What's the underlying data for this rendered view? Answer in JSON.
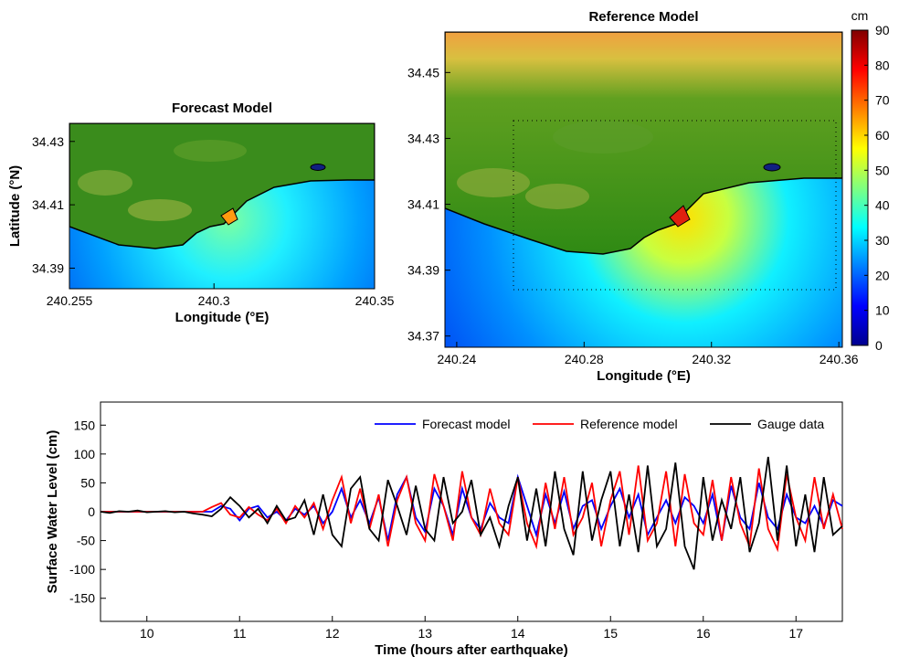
{
  "chart_data": [
    {
      "type": "map",
      "title": "Forecast Model",
      "xlabel": "Longitude (°E)",
      "ylabel": "Latitude (°N)",
      "xlim": [
        240.255,
        240.35
      ],
      "ylim": [
        34.3835,
        34.4357
      ],
      "xticks": [
        240.255,
        240.3,
        240.35
      ],
      "yticks": [
        34.39,
        34.41,
        34.43
      ]
    },
    {
      "type": "map",
      "title": "Reference Model",
      "xlabel": "Longitude (°E)",
      "xlim": [
        240.2363,
        240.3611
      ],
      "ylim": [
        34.3666,
        34.4623
      ],
      "xticks": [
        240.24,
        240.28,
        240.32,
        240.36
      ],
      "yticks": [
        34.37,
        34.39,
        34.41,
        34.43,
        34.45
      ],
      "colorbar": {
        "label": "cm",
        "lim": [
          0,
          90
        ],
        "ticks": [
          0,
          10,
          20,
          30,
          40,
          50,
          60,
          70,
          80,
          90
        ]
      }
    },
    {
      "type": "line",
      "xlabel": "Time (hours after earthquake)",
      "ylabel": "Surface Water Level (cm)",
      "xlim": [
        9.5,
        17.5
      ],
      "ylim": [
        -190,
        190
      ],
      "xticks": [
        10,
        11,
        12,
        13,
        14,
        15,
        16,
        17
      ],
      "yticks": [
        -150,
        -100,
        -50,
        0,
        50,
        100,
        150
      ],
      "legend": "upper right",
      "x": [
        9.5,
        9.6,
        9.7,
        9.8,
        9.9,
        10.0,
        10.1,
        10.2,
        10.3,
        10.4,
        10.5,
        10.6,
        10.7,
        10.8,
        10.9,
        11.0,
        11.1,
        11.2,
        11.3,
        11.4,
        11.5,
        11.6,
        11.7,
        11.8,
        11.9,
        12.0,
        12.1,
        12.2,
        12.3,
        12.4,
        12.5,
        12.6,
        12.7,
        12.8,
        12.9,
        13.0,
        13.1,
        13.2,
        13.3,
        13.4,
        13.5,
        13.6,
        13.7,
        13.8,
        13.9,
        14.0,
        14.1,
        14.2,
        14.3,
        14.4,
        14.5,
        14.6,
        14.7,
        14.8,
        14.9,
        15.0,
        15.1,
        15.2,
        15.3,
        15.4,
        15.5,
        15.6,
        15.7,
        15.8,
        15.9,
        16.0,
        16.1,
        16.2,
        16.3,
        16.4,
        16.5,
        16.6,
        16.7,
        16.8,
        16.9,
        17.0,
        17.1,
        17.2,
        17.3,
        17.4,
        17.5
      ],
      "series": [
        {
          "name": "Forecast model",
          "color": "#0000ff",
          "values": [
            0,
            0,
            0,
            0,
            0,
            0,
            0,
            0,
            0,
            0,
            0,
            0,
            0,
            10,
            5,
            -15,
            5,
            10,
            -10,
            0,
            -15,
            5,
            -5,
            10,
            -20,
            0,
            40,
            -10,
            20,
            -20,
            25,
            -50,
            30,
            60,
            -10,
            -35,
            40,
            10,
            -40,
            40,
            -10,
            -30,
            15,
            -10,
            -20,
            60,
            10,
            -40,
            30,
            -20,
            35,
            -30,
            10,
            20,
            -30,
            10,
            40,
            -10,
            30,
            -40,
            -10,
            20,
            -20,
            25,
            10,
            -20,
            30,
            -50,
            45,
            -10,
            -30,
            50,
            -10,
            -30,
            30,
            -10,
            -20,
            10,
            -25,
            20,
            10
          ]
        },
        {
          "name": "Reference model",
          "color": "#ff0000",
          "values": [
            0,
            0,
            0,
            0,
            0,
            0,
            0,
            0,
            0,
            0,
            0,
            0,
            8,
            15,
            -5,
            -10,
            8,
            -5,
            -15,
            5,
            -20,
            10,
            -10,
            15,
            -30,
            20,
            60,
            -20,
            40,
            -30,
            30,
            -60,
            20,
            60,
            -20,
            -50,
            65,
            10,
            -50,
            70,
            -10,
            -40,
            40,
            -20,
            -40,
            60,
            -20,
            -60,
            50,
            -30,
            60,
            -40,
            -10,
            50,
            -60,
            20,
            70,
            -40,
            80,
            -50,
            -20,
            70,
            -60,
            65,
            -20,
            -40,
            55,
            -50,
            60,
            -20,
            -60,
            75,
            -30,
            -65,
            65,
            -10,
            -50,
            60,
            -30,
            30,
            -30
          ]
        },
        {
          "name": "Gauge data",
          "color": "#000000",
          "values": [
            0,
            -2,
            1,
            0,
            2,
            -1,
            0,
            1,
            -1,
            0,
            -3,
            -5,
            -8,
            5,
            25,
            10,
            -10,
            5,
            -20,
            10,
            -15,
            -10,
            20,
            -40,
            30,
            -40,
            -60,
            40,
            60,
            -30,
            -50,
            55,
            10,
            -40,
            45,
            -30,
            -50,
            60,
            -20,
            0,
            55,
            -40,
            -10,
            -60,
            10,
            60,
            -50,
            40,
            -60,
            70,
            -30,
            -75,
            70,
            -50,
            20,
            70,
            -60,
            30,
            -70,
            80,
            -60,
            -30,
            85,
            -60,
            -100,
            60,
            -50,
            20,
            -30,
            60,
            -70,
            -20,
            95,
            -50,
            80,
            -60,
            30,
            -70,
            60,
            -40,
            -25
          ]
        }
      ]
    }
  ]
}
